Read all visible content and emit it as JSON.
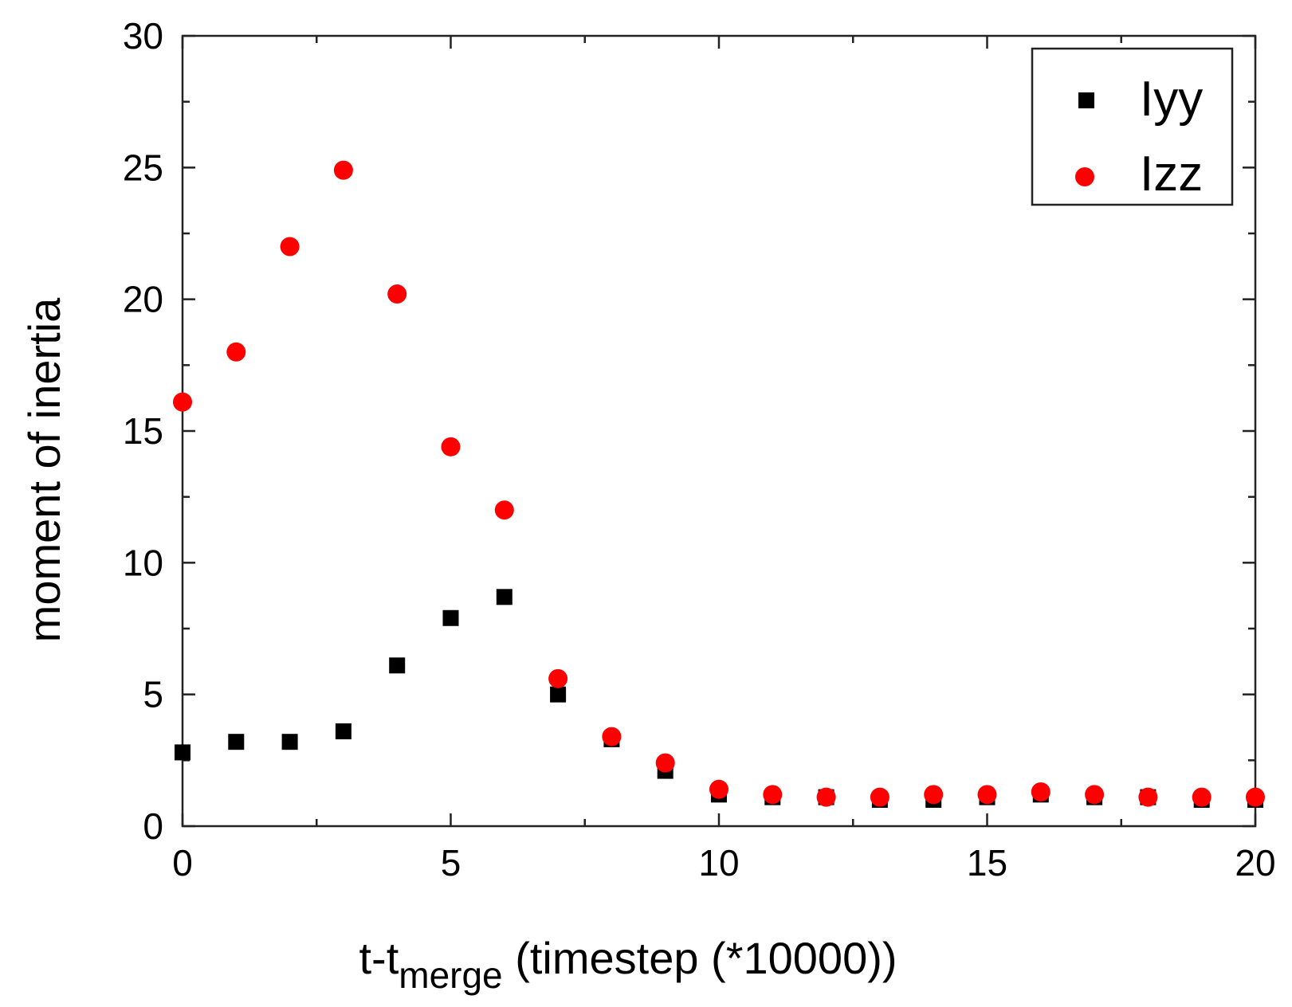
{
  "chart_data": {
    "type": "scatter",
    "title": "",
    "xlabel": {
      "main": "t-t",
      "sub": "merge",
      "rest": " (timestep (*10000))"
    },
    "ylabel": "moment of inertia",
    "xlim": [
      0,
      20
    ],
    "ylim": [
      0,
      30
    ],
    "xticks": [
      0,
      5,
      10,
      15,
      20
    ],
    "yticks": [
      0,
      5,
      10,
      15,
      20,
      25,
      30
    ],
    "xtick_labels": [
      "0",
      "5",
      "10",
      "15",
      "20"
    ],
    "ytick_labels": [
      "0",
      "5",
      "10",
      "15",
      "20",
      "25",
      "30"
    ],
    "x_minor_step": 2.5,
    "y_minor_step": 2.5,
    "legend_position": "top-right",
    "grid": false,
    "series": [
      {
        "name": "Iyy",
        "marker": "square",
        "color": "#000000",
        "x": [
          0,
          1,
          2,
          3,
          4,
          5,
          6,
          7,
          8,
          9,
          10,
          11,
          12,
          13,
          14,
          15,
          16,
          17,
          18,
          19,
          20
        ],
        "y": [
          2.8,
          3.2,
          3.2,
          3.6,
          6.1,
          7.9,
          8.7,
          5.0,
          3.3,
          2.1,
          1.2,
          1.1,
          1.1,
          1.0,
          1.0,
          1.1,
          1.2,
          1.1,
          1.1,
          1.0,
          1.0
        ]
      },
      {
        "name": "Izz",
        "marker": "circle",
        "color": "#ff0000",
        "x": [
          0,
          1,
          2,
          3,
          4,
          5,
          6,
          7,
          8,
          9,
          10,
          11,
          12,
          13,
          14,
          15,
          16,
          17,
          18,
          19,
          20
        ],
        "y": [
          16.1,
          18.0,
          22.0,
          24.9,
          20.2,
          14.4,
          12.0,
          5.6,
          3.4,
          2.4,
          1.4,
          1.2,
          1.1,
          1.1,
          1.2,
          1.2,
          1.3,
          1.2,
          1.1,
          1.1,
          1.1
        ]
      }
    ]
  }
}
